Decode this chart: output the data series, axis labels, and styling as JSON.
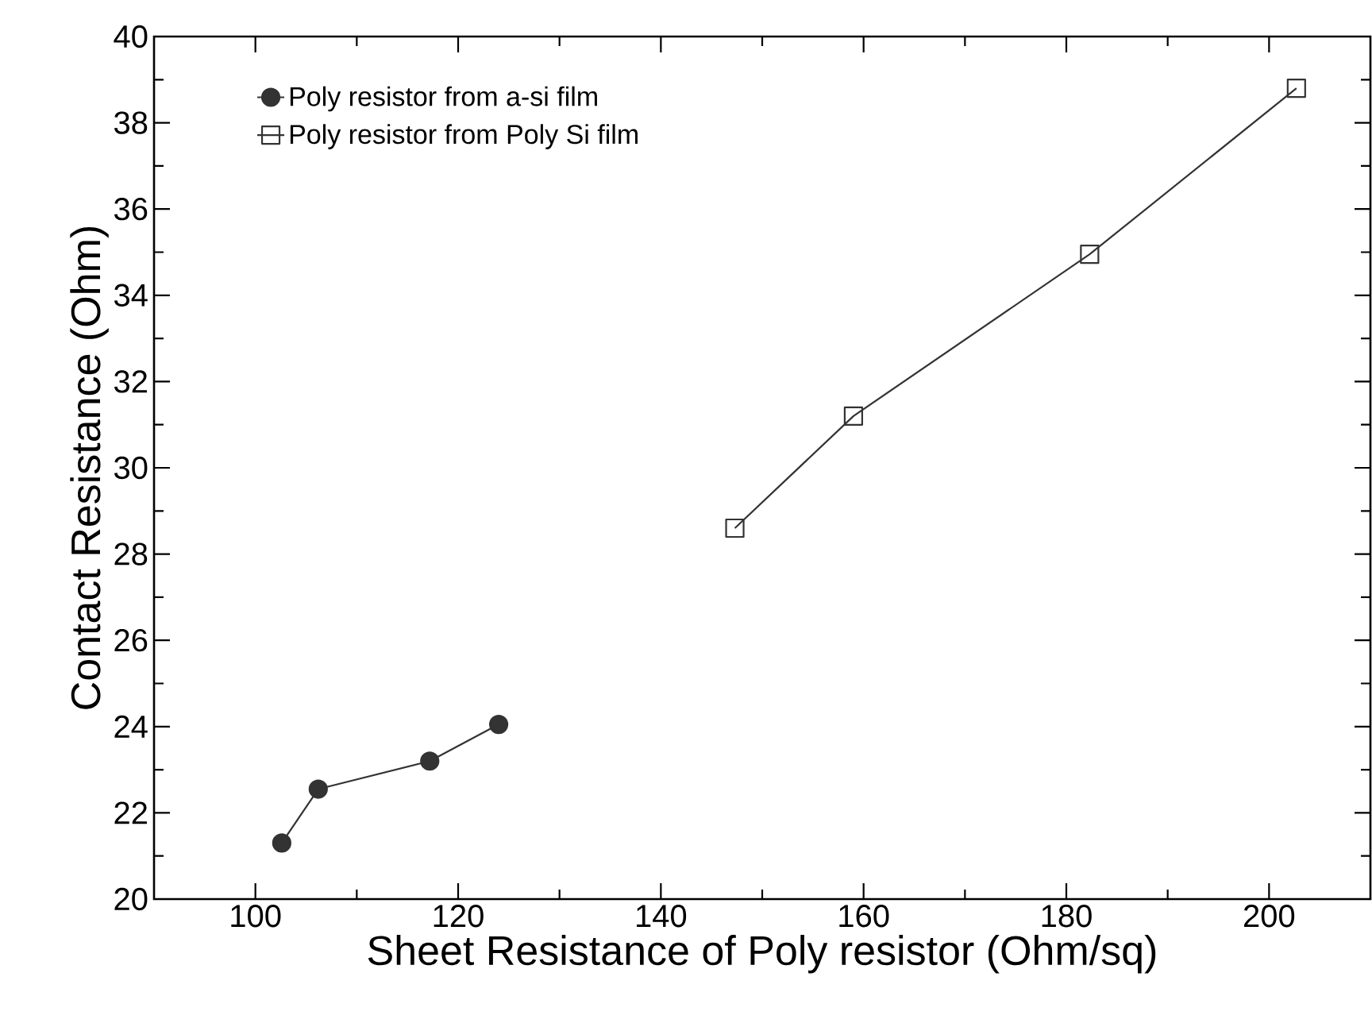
{
  "chart_data": {
    "type": "line",
    "xlabel": "Sheet Resistance of Poly resistor (Ohm/sq)",
    "ylabel": "Contact Resistance (Ohm)",
    "xlim": [
      90,
      210
    ],
    "ylim": [
      20,
      40
    ],
    "xticks": [
      100,
      120,
      140,
      160,
      180,
      200
    ],
    "yticks": [
      20,
      22,
      24,
      26,
      28,
      30,
      32,
      34,
      36,
      38,
      40
    ],
    "legend": "top left",
    "series": [
      {
        "name": "Poly resistor from a-si film",
        "color": "#333333",
        "marker": "circle",
        "x": [
          102.6,
          106.2,
          117.2,
          124.0
        ],
        "values": [
          21.3,
          22.55,
          23.2,
          24.05
        ]
      },
      {
        "name": "Poly resistor from Poly Si film",
        "color": "#333333",
        "marker": "square",
        "x": [
          147.3,
          159.0,
          182.3,
          202.7
        ],
        "values": [
          28.6,
          31.2,
          34.95,
          38.8
        ]
      }
    ]
  }
}
